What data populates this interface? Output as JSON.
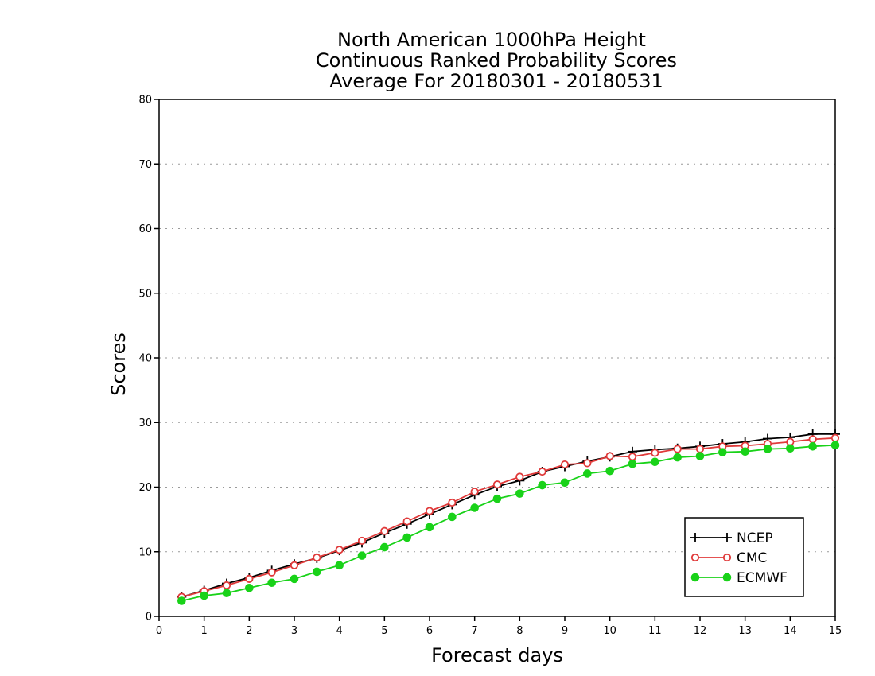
{
  "chart_data": {
    "type": "line",
    "title_lines": [
      "North American 1000hPa Height",
      "Continuous Ranked Probability Scores",
      "Average For 20180301 - 20180531"
    ],
    "xlabel": "Forecast days",
    "ylabel": "Scores",
    "xlim": [
      0,
      15
    ],
    "ylim": [
      0,
      80
    ],
    "xticks": [
      "0",
      "1",
      "2",
      "3",
      "4",
      "5",
      "6",
      "7",
      "8",
      "9",
      "10",
      "11",
      "12",
      "13",
      "14",
      "15"
    ],
    "yticks": [
      "0",
      "10",
      "20",
      "30",
      "40",
      "50",
      "60",
      "70",
      "80"
    ],
    "grid": true,
    "legend_position": "bottom-right",
    "x": [
      0.5,
      1,
      1.5,
      2,
      2.5,
      3,
      3.5,
      4,
      4.5,
      5,
      5.5,
      6,
      6.5,
      7,
      7.5,
      8,
      8.5,
      9,
      9.5,
      10,
      10.5,
      11,
      11.5,
      12,
      12.5,
      13,
      13.5,
      14,
      14.5,
      15
    ],
    "series": [
      {
        "name": "NCEP",
        "color": "#000000",
        "marker": "plus",
        "values": [
          3.0,
          4.0,
          5.1,
          6.0,
          7.1,
          8.1,
          9.0,
          10.2,
          11.4,
          12.9,
          14.3,
          15.8,
          17.3,
          18.8,
          20.1,
          21.0,
          22.4,
          23.2,
          24.0,
          24.7,
          25.5,
          25.8,
          26.0,
          26.3,
          26.7,
          27.0,
          27.5,
          27.7,
          28.2,
          28.2
        ]
      },
      {
        "name": "CMC",
        "color": "#e03a3a",
        "marker": "open-circle",
        "values": [
          3.0,
          3.9,
          4.8,
          5.8,
          6.8,
          7.9,
          9.1,
          10.3,
          11.7,
          13.2,
          14.7,
          16.3,
          17.6,
          19.3,
          20.4,
          21.6,
          22.4,
          23.5,
          23.7,
          24.8,
          24.7,
          25.3,
          25.9,
          25.9,
          26.3,
          26.4,
          26.7,
          27.0,
          27.4,
          27.6
        ]
      },
      {
        "name": "ECMWF",
        "color": "#19d219",
        "marker": "filled-circle",
        "values": [
          2.4,
          3.2,
          3.6,
          4.4,
          5.2,
          5.8,
          6.9,
          7.9,
          9.4,
          10.7,
          12.2,
          13.8,
          15.4,
          16.8,
          18.2,
          19.0,
          20.3,
          20.7,
          22.1,
          22.5,
          23.6,
          23.9,
          24.6,
          24.8,
          25.4,
          25.5,
          25.9,
          26.0,
          26.3,
          26.5
        ]
      }
    ]
  }
}
